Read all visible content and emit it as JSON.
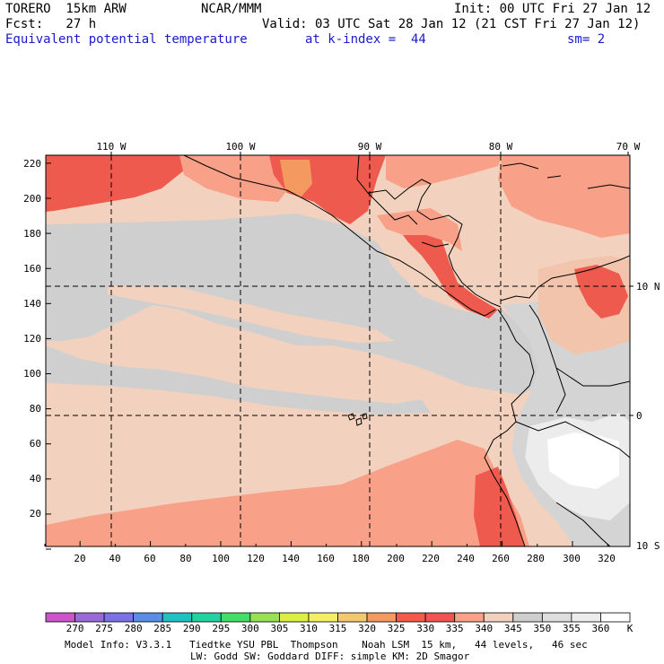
{
  "header": {
    "model": "TORERO  15km ARW",
    "org": "NCAR/MMM",
    "init": "Init: 00 UTC Fri 27 Jan 12",
    "fcst": "Fcst:   27 h",
    "valid": "Valid: 03 UTC Sat 28 Jan 12 (21 CST Fri 27 Jan 12)",
    "field": "Equivalent potential temperature",
    "level": "at k-index =  44",
    "smooth": "sm= 2"
  },
  "axes": {
    "x_ticks": [
      "20",
      "40",
      "60",
      "80",
      "100",
      "120",
      "140",
      "160",
      "180",
      "200",
      "220",
      "240",
      "260",
      "280",
      "300",
      "320"
    ],
    "y_ticks": [
      "20",
      "40",
      "60",
      "80",
      "100",
      "120",
      "140",
      "160",
      "180",
      "200",
      "220"
    ],
    "lon_labels": [
      "110 W",
      "100 W",
      "90 W",
      "80 W",
      "70 W"
    ],
    "lat_labels": [
      "10 N",
      "0",
      "10 S"
    ]
  },
  "colorbar": {
    "unit": "K",
    "labels": [
      "270",
      "275",
      "280",
      "285",
      "290",
      "295",
      "300",
      "305",
      "310",
      "315",
      "320",
      "325",
      "330",
      "335",
      "340",
      "345",
      "350",
      "355",
      "360"
    ],
    "colors": [
      "#cc55cc",
      "#9a6ad8",
      "#7a72e6",
      "#5a8ee6",
      "#22c0c0",
      "#22d0a0",
      "#44dd66",
      "#99e055",
      "#ddee44",
      "#f2ee66",
      "#f4c870",
      "#f49a60",
      "#f25a4a",
      "#ee5454",
      "#f8a088",
      "#f2d2be",
      "#cecece",
      "#dedede",
      "#ececec",
      "#ffffff"
    ]
  },
  "footer": {
    "line1": "Model Info: V3.3.1   Tiedtke YSU PBL  Thompson    Noah LSM  15 km,   44 levels,   46 sec",
    "line2": "LW: Godd SW: Goddard DIFF: simple KM: 2D Smagor"
  }
}
